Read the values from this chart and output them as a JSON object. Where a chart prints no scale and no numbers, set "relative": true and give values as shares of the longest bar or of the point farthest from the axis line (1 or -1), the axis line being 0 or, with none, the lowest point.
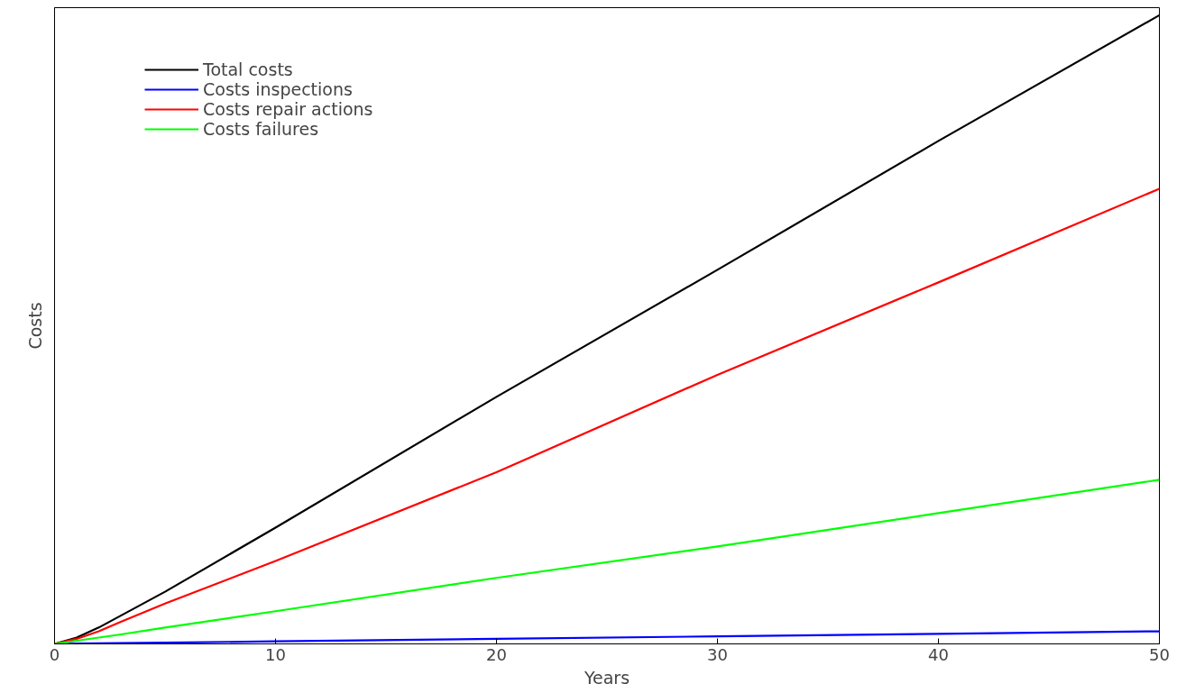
{
  "chart_data": {
    "type": "line",
    "xlabel": "Years",
    "ylabel": "Costs",
    "relative": true,
    "x": [
      0,
      1,
      2,
      3,
      5,
      10,
      20,
      30,
      40,
      50
    ],
    "xlim": [
      0,
      50
    ],
    "xticks": [
      0,
      10,
      20,
      30,
      40,
      50
    ],
    "grid": false,
    "legend": "top left",
    "marker": "none",
    "line_style": "solid",
    "series": [
      {
        "name": "Total costs",
        "color": "#000000",
        "values": [
          0,
          0.01,
          0.026,
          0.045,
          0.083,
          0.185,
          0.393,
          0.595,
          0.8,
          1
        ]
      },
      {
        "name": "Costs inspections",
        "color": "#0000ff",
        "values": [
          0,
          0.0004,
          0.0008,
          0.0012,
          0.002,
          0.004,
          0.008,
          0.012,
          0.016,
          0.02
        ]
      },
      {
        "name": "Costs repair actions",
        "color": "#ff0000",
        "values": [
          0,
          0.008,
          0.02,
          0.035,
          0.064,
          0.132,
          0.273,
          0.428,
          0.575,
          0.724
        ]
      },
      {
        "name": "Costs failures",
        "color": "#00ff00",
        "values": [
          0,
          0.005,
          0.01,
          0.015,
          0.026,
          0.052,
          0.105,
          0.155,
          0.208,
          0.261
        ]
      }
    ]
  }
}
